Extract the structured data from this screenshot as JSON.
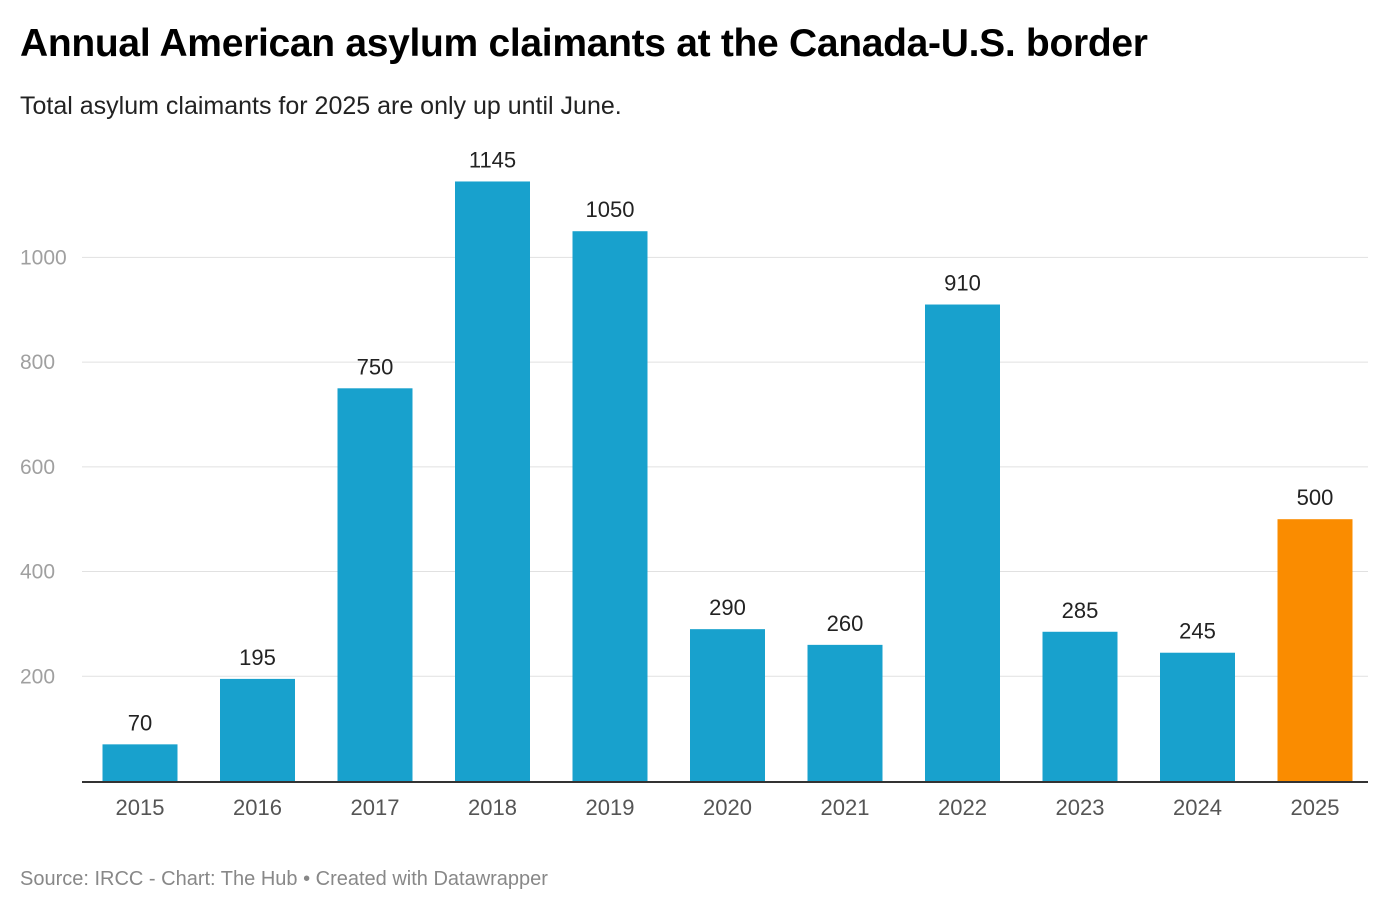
{
  "chart_data": {
    "type": "bar",
    "title": "Annual American asylum claimants at the Canada-U.S. border",
    "subtitle": "Total asylum claimants for 2025 are only up until June.",
    "xlabel": "",
    "ylabel": "",
    "categories": [
      "2015",
      "2016",
      "2017",
      "2018",
      "2019",
      "2020",
      "2021",
      "2022",
      "2023",
      "2024",
      "2025"
    ],
    "values": [
      70,
      195,
      750,
      1145,
      1050,
      290,
      260,
      910,
      285,
      245,
      500
    ],
    "value_labels": [
      "70",
      "195",
      "750",
      "1145",
      "1050",
      "290",
      "260",
      "910",
      "285",
      "245",
      "500"
    ],
    "ylim": [
      0,
      1150
    ],
    "yticks": [
      200,
      400,
      600,
      800,
      1000
    ],
    "ytick_labels": [
      "200",
      "400",
      "600",
      "800",
      "1000"
    ],
    "grid": true,
    "legend": "none",
    "colors": {
      "bar": "#18a1cd",
      "highlight": "#fa8c00",
      "highlight_category": "2025"
    }
  },
  "footer": {
    "source": "Source: IRCC - Chart: The Hub • Created with Datawrapper"
  }
}
